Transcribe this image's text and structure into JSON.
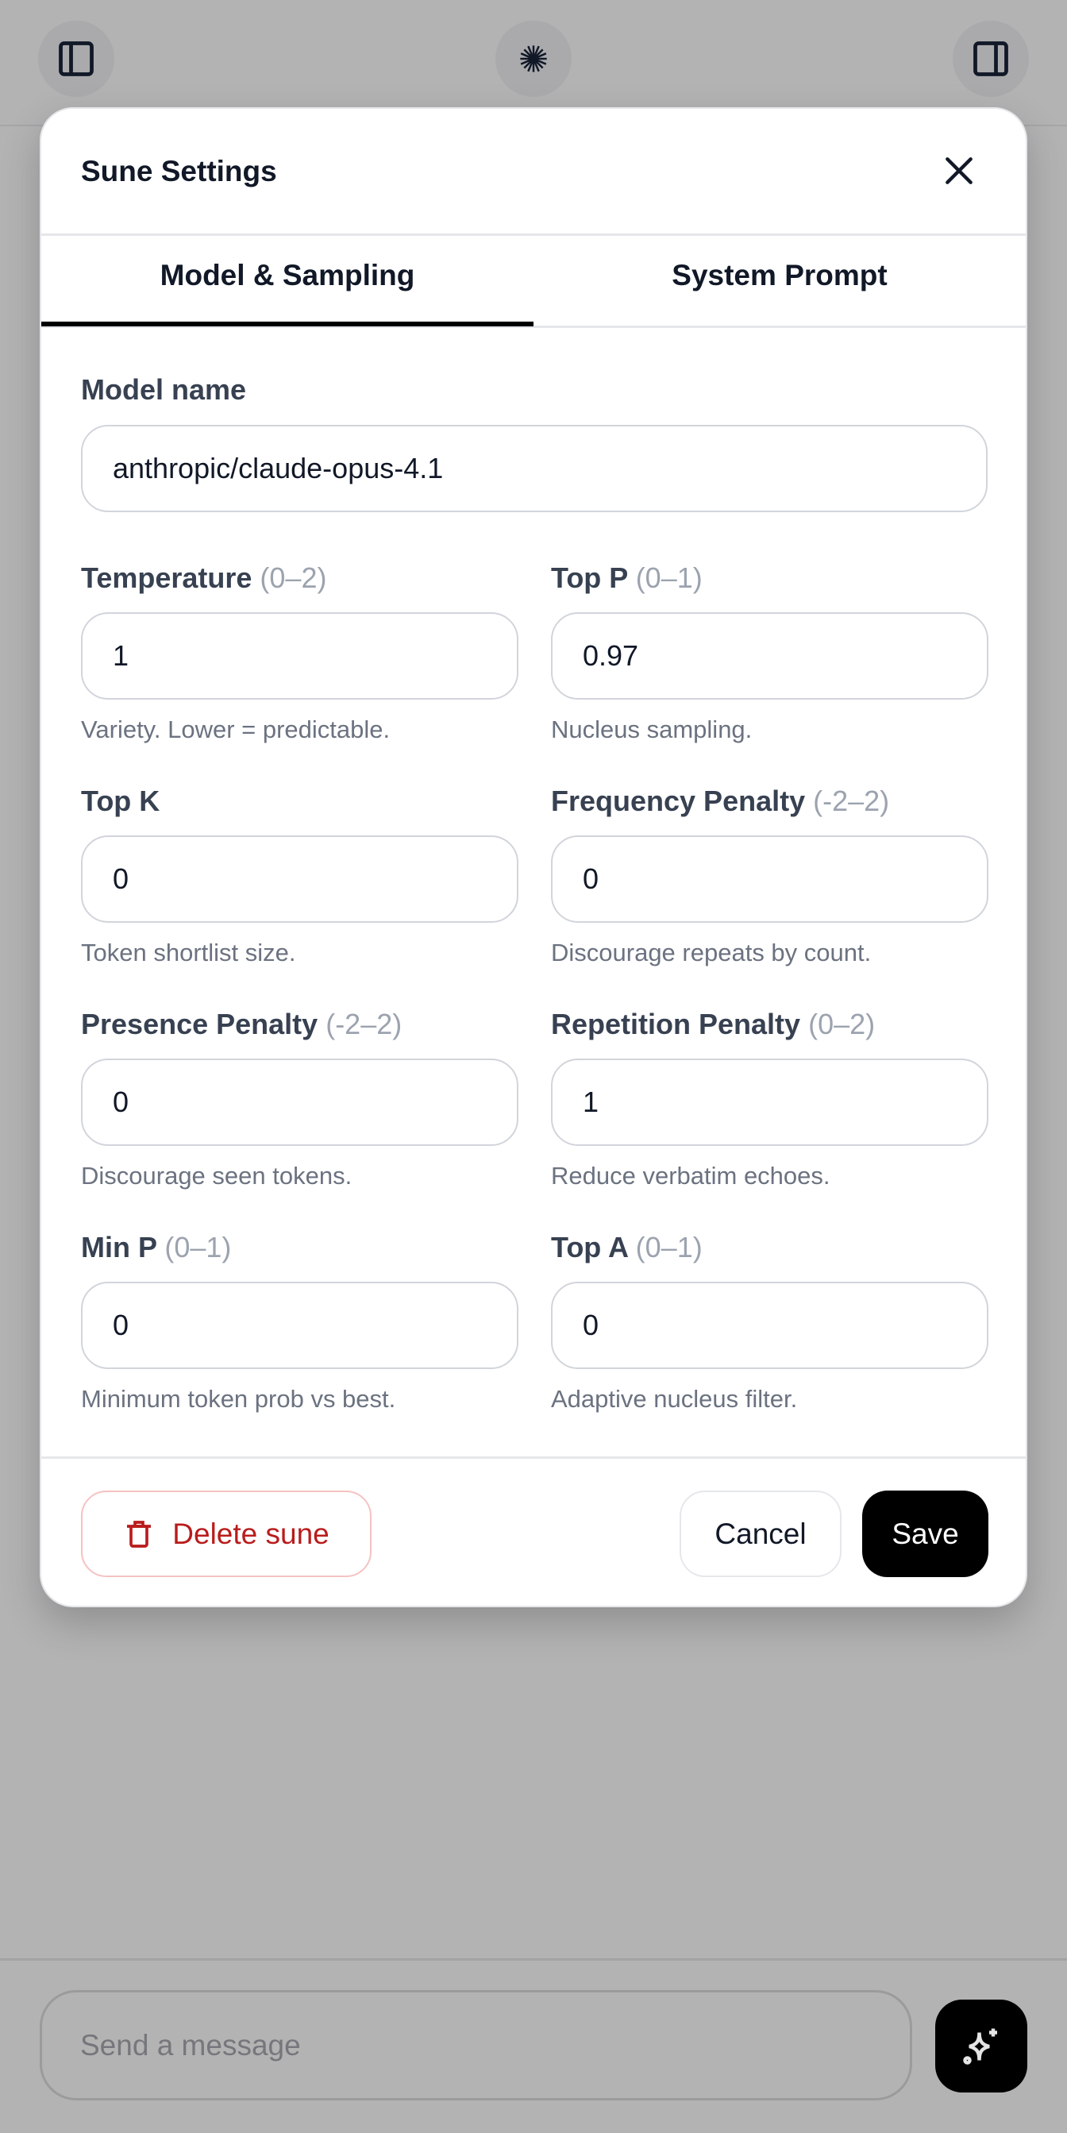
{
  "topbar": {
    "left_icon": "sidebar-left-icon",
    "center_icon": "sparkle-burst-icon",
    "right_icon": "sidebar-right-icon"
  },
  "modal": {
    "title": "Sune Settings",
    "close_icon": "close-icon",
    "tabs": [
      {
        "label": "Model & Sampling",
        "active": true
      },
      {
        "label": "System Prompt",
        "active": false
      }
    ],
    "model_name": {
      "label": "Model name",
      "value": "anthropic/claude-opus-4.1"
    },
    "fields": [
      {
        "label": "Temperature",
        "range": "(0–2)",
        "value": "1",
        "help": "Variety. Lower = predictable."
      },
      {
        "label": "Top P",
        "range": "(0–1)",
        "value": "0.97",
        "help": "Nucleus sampling."
      },
      {
        "label": "Top K",
        "range": "",
        "value": "0",
        "help": "Token shortlist size."
      },
      {
        "label": "Frequency Penalty",
        "range": "(-2–2)",
        "value": "0",
        "help": "Discourage repeats by count."
      },
      {
        "label": "Presence Penalty",
        "range": "(-2–2)",
        "value": "0",
        "help": "Discourage seen tokens."
      },
      {
        "label": "Repetition Penalty",
        "range": "(0–2)",
        "value": "1",
        "help": "Reduce verbatim echoes."
      },
      {
        "label": "Min P",
        "range": "(0–1)",
        "value": "0",
        "help": "Minimum token prob vs best."
      },
      {
        "label": "Top A",
        "range": "(0–1)",
        "value": "0",
        "help": "Adaptive nucleus filter."
      }
    ],
    "footer": {
      "delete_label": "Delete sune",
      "delete_icon": "trash-icon",
      "cancel_label": "Cancel",
      "save_label": "Save"
    }
  },
  "composer": {
    "placeholder": "Send a message",
    "send_icon": "sparkles-icon"
  },
  "colors": {
    "overlay": "#b3b3b3",
    "danger": "#b91c1c",
    "primary": "#000000"
  }
}
